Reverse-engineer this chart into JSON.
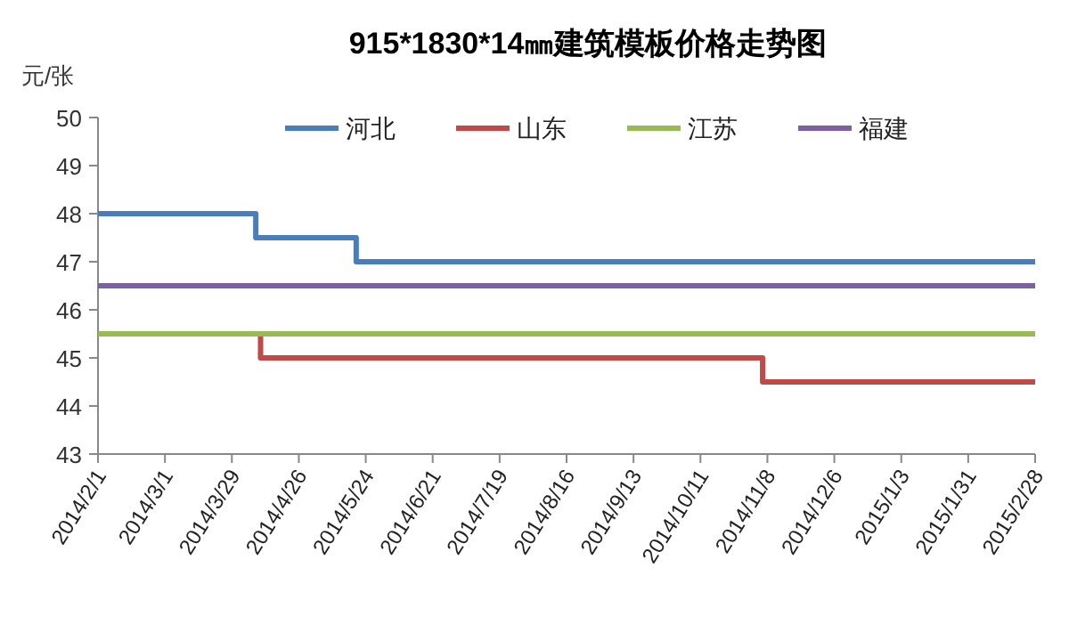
{
  "chart_data": {
    "type": "step",
    "title": "915*1830*14㎜建筑模板价格走势图",
    "ylabel": "元/张",
    "xlim": [
      "2014-02-01",
      "2015-02-28"
    ],
    "xticks": [
      {
        "value": "2014-02-01",
        "label": "2014/2/1"
      },
      {
        "value": "2014-03-01",
        "label": "2014/3/1"
      },
      {
        "value": "2014-03-29",
        "label": "2014/3/29"
      },
      {
        "value": "2014-04-26",
        "label": "2014/4/26"
      },
      {
        "value": "2014-05-24",
        "label": "2014/5/24"
      },
      {
        "value": "2014-06-21",
        "label": "2014/6/21"
      },
      {
        "value": "2014-07-19",
        "label": "2014/7/19"
      },
      {
        "value": "2014-08-16",
        "label": "2014/8/16"
      },
      {
        "value": "2014-09-13",
        "label": "2014/9/13"
      },
      {
        "value": "2014-10-11",
        "label": "2014/10/11"
      },
      {
        "value": "2014-11-08",
        "label": "2014/11/8"
      },
      {
        "value": "2014-12-06",
        "label": "2014/12/6"
      },
      {
        "value": "2015-01-03",
        "label": "2015/1/3"
      },
      {
        "value": "2015-01-31",
        "label": "2015/1/31"
      },
      {
        "value": "2015-02-28",
        "label": "2015/2/28"
      }
    ],
    "ylim": [
      43,
      50
    ],
    "yticks": [
      43,
      44,
      45,
      46,
      47,
      48,
      49,
      50
    ],
    "series": [
      {
        "name": "河北",
        "color": "#4a7ebb",
        "x": [
          "2014-02-01",
          "2014-04-08",
          "2014-05-20",
          "2015-02-28"
        ],
        "values": [
          48,
          47.5,
          47,
          47
        ]
      },
      {
        "name": "山东",
        "color": "#be4b48",
        "x": [
          "2014-02-01",
          "2014-04-10",
          "2014-11-06",
          "2015-02-28"
        ],
        "values": [
          45.5,
          45,
          44.5,
          44.5
        ]
      },
      {
        "name": "江苏",
        "color": "#98b954",
        "x": [
          "2014-02-01",
          "2015-02-28"
        ],
        "values": [
          45.5,
          45.5
        ]
      },
      {
        "name": "福建",
        "color": "#7d60a0",
        "x": [
          "2014-02-01",
          "2015-02-28"
        ],
        "values": [
          46.5,
          46.5
        ]
      }
    ],
    "legend": "top",
    "grid": false,
    "marker": "none",
    "line_style": "solid"
  }
}
